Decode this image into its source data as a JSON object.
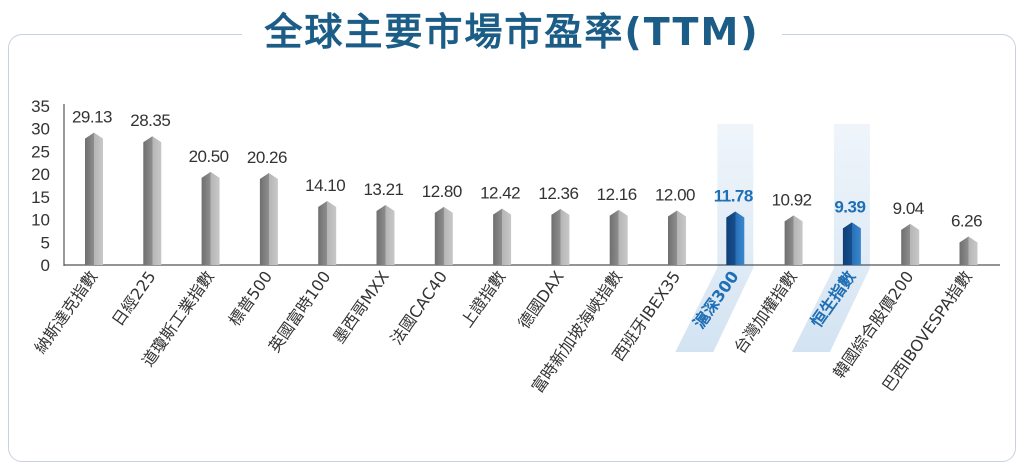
{
  "title": "全球主要市場市盈率(TTM)",
  "colors": {
    "title": "#1b5d86",
    "bar_gray_light": "#b8b8b8",
    "bar_gray_dark": "#7c7c7c",
    "bar_blue_light": "#2e7fc4",
    "bar_blue_dark": "#134a86",
    "highlight_band": "#dae7f4",
    "label_highlight": "#1f6fb5",
    "label_normal": "#333333"
  },
  "chart_data": {
    "type": "bar",
    "title": "全球主要市場市盈率(TTM)",
    "categories": [
      "納斯達克指數",
      "日經225",
      "道瓊斯工業指數",
      "標普500",
      "英國富時100",
      "墨西哥MXX",
      "法國CAC40",
      "上證指數",
      "德國DAX",
      "富時新加坡海峽指數",
      "西班牙IBEX35",
      "滬深300",
      "台灣加權指數",
      "恒生指數",
      "韓國綜合股價200",
      "巴西IBOVESPA指數"
    ],
    "values": [
      29.13,
      28.35,
      20.5,
      20.26,
      14.1,
      13.21,
      12.8,
      12.42,
      12.36,
      12.16,
      12.0,
      11.78,
      10.92,
      9.39,
      9.04,
      6.26
    ],
    "value_labels": [
      "29.13",
      "28.35",
      "20.50",
      "20.26",
      "14.10",
      "13.21",
      "12.80",
      "12.42",
      "12.36",
      "12.16",
      "12.00",
      "11.78",
      "10.92",
      "9.39",
      "9.04",
      "6.26"
    ],
    "highlighted": [
      "滬深300",
      "恒生指數"
    ],
    "ylim": [
      0,
      35
    ],
    "yticks": [
      "0",
      "5",
      "10",
      "15",
      "20",
      "25",
      "30",
      "35"
    ],
    "xlabel": "",
    "ylabel": "",
    "grid": false,
    "legend": "none"
  }
}
